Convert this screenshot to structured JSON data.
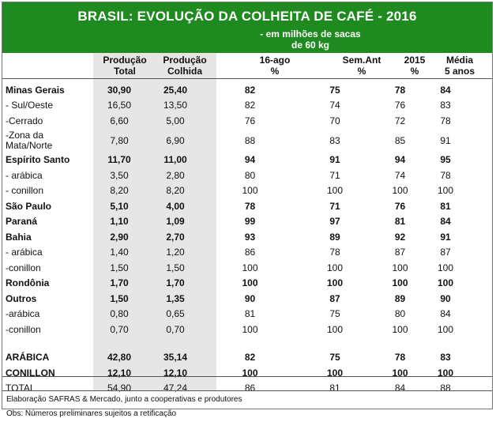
{
  "title": "BRASIL: EVOLUÇÃO DA COLHEITA DE CAFÉ - 2016",
  "subtitle_1": "- em milhões de sacas",
  "subtitle_2": "de 60 kg",
  "headers": [
    {
      "l1": "Produção",
      "l2": "Total"
    },
    {
      "l1": "Produção",
      "l2": "Colhida"
    },
    {
      "l1": "16-ago",
      "l2": "%"
    },
    {
      "l1": "Sem.Ant",
      "l2": "%"
    },
    {
      "l1": "2015",
      "l2": "%"
    },
    {
      "l1": "Média",
      "l2": "5 anos"
    }
  ],
  "rows": [
    {
      "label": "Minas Gerais",
      "label2": "",
      "bold": true,
      "v": [
        "30,90",
        "25,40",
        "82",
        "75",
        "78",
        "84"
      ]
    },
    {
      "label": " - Sul/Oeste",
      "label2": "",
      "bold": false,
      "v": [
        "16,50",
        "13,50",
        "82",
        "74",
        "76",
        "83"
      ]
    },
    {
      "label": " -Cerrado",
      "label2": "",
      "bold": false,
      "v": [
        "6,60",
        "5,00",
        "76",
        "70",
        "72",
        "78"
      ]
    },
    {
      "label": " -Zona da",
      "label2": "Mata/Norte",
      "bold": false,
      "v": [
        "7,80",
        "6,90",
        "88",
        "83",
        "85",
        "91"
      ]
    },
    {
      "label": "Espírito Santo",
      "label2": "",
      "bold": true,
      "v": [
        "11,70",
        "11,00",
        "94",
        "91",
        "94",
        "95"
      ]
    },
    {
      "label": " - arábica",
      "label2": "",
      "bold": false,
      "v": [
        "3,50",
        "2,80",
        "80",
        "71",
        "74",
        "78"
      ]
    },
    {
      "label": " - conillon",
      "label2": "",
      "bold": false,
      "v": [
        "8,20",
        "8,20",
        "100",
        "100",
        "100",
        "100"
      ]
    },
    {
      "label": "São Paulo",
      "label2": "",
      "bold": true,
      "v": [
        "5,10",
        "4,00",
        "78",
        "71",
        "76",
        "81"
      ]
    },
    {
      "label": "Paraná",
      "label2": "",
      "bold": true,
      "v": [
        "1,10",
        "1,09",
        "99",
        "97",
        "81",
        "84"
      ]
    },
    {
      "label": "Bahia",
      "label2": "",
      "bold": true,
      "v": [
        "2,90",
        "2,70",
        "93",
        "89",
        "92",
        "91"
      ]
    },
    {
      "label": " - arábica",
      "label2": "",
      "bold": false,
      "v": [
        "1,40",
        "1,20",
        "86",
        "78",
        "87",
        "87"
      ]
    },
    {
      "label": " -conillon",
      "label2": "",
      "bold": false,
      "v": [
        "1,50",
        "1,50",
        "100",
        "100",
        "100",
        "100"
      ]
    },
    {
      "label": "Rondônia",
      "label2": "",
      "bold": true,
      "v": [
        "1,70",
        "1,70",
        "100",
        "100",
        "100",
        "100"
      ]
    },
    {
      "label": "Outros",
      "label2": "",
      "bold": true,
      "v": [
        "1,50",
        "1,35",
        "90",
        "87",
        "89",
        "90"
      ]
    },
    {
      "label": " -arábica",
      "label2": "",
      "bold": false,
      "v": [
        "0,80",
        "0,65",
        "81",
        "75",
        "80",
        "84"
      ]
    },
    {
      "label": " -conillon",
      "label2": "",
      "bold": false,
      "v": [
        "0,70",
        "0,70",
        "100",
        "100",
        "100",
        "100"
      ]
    },
    {
      "label": "ARÁBICA",
      "label2": "",
      "bold": true,
      "v": [
        "42,80",
        "35,14",
        "82",
        "75",
        "78",
        "83"
      ]
    },
    {
      "label": "CONILLON",
      "label2": "",
      "bold": true,
      "v": [
        "12,10",
        "12,10",
        "100",
        "100",
        "100",
        "100"
      ]
    },
    {
      "label": "TOTAL",
      "label2": "",
      "bold": false,
      "v": [
        "54,90",
        "47,24",
        "86",
        "81",
        "84",
        "88"
      ]
    }
  ],
  "footnote_1": "Elaboração SAFRAS & Mercado, junto a cooperativas e produtores",
  "footnote_2": "Obs: Números preliminares sujeitos a retificação",
  "colors": {
    "banner": "#1f8a1f",
    "shade": "#e6e6e6"
  }
}
